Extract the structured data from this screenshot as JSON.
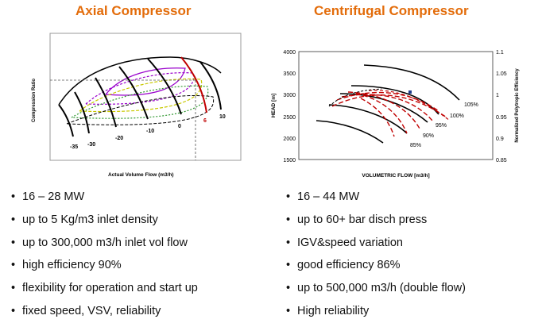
{
  "axial": {
    "title": "Axial Compressor",
    "y_label": "Compression Ratio",
    "x_label": "Actual Volume Flow (m3/h)",
    "vane_labels": [
      "-35",
      "-30",
      "-20",
      "-10",
      "0",
      "6",
      "10"
    ],
    "bullets": [
      "16 – 28 MW",
      "up to 5 Kg/m3 inlet density",
      "up to 300,000 m3/h inlet vol flow",
      "high efficiency  90%",
      "flexibility for operation and start up",
      "fixed speed, VSV, reliability"
    ]
  },
  "centrifugal": {
    "title": "Centrifugal Compressor",
    "y_label": "HEAD [m]",
    "y2_label": "Normalized Polytropic Efficiency",
    "x_label": "VOLUMETRIC FLOW [m3/h]",
    "y_ticks": [
      "4000",
      "3500",
      "3000",
      "2500",
      "2000",
      "1500"
    ],
    "y2_ticks": [
      "1.1",
      "1.05",
      "1",
      "0.95",
      "0.9",
      "0.85"
    ],
    "speed_labels": [
      "105%",
      "100%",
      "95%",
      "90%",
      "85%"
    ],
    "bullets": [
      "16 – 44 MW",
      "up to 60+ bar disch press",
      "IGV&speed variation",
      "good efficiency 86%",
      "up to 500,000 m3/h (double flow)",
      "High reliability"
    ]
  },
  "colors": {
    "title": "#e36c0a",
    "highlight_red": "#c00000",
    "efficiency_purple": "#9900cc",
    "efficiency_yellow": "#c8c800",
    "efficiency_green": "#339933"
  }
}
